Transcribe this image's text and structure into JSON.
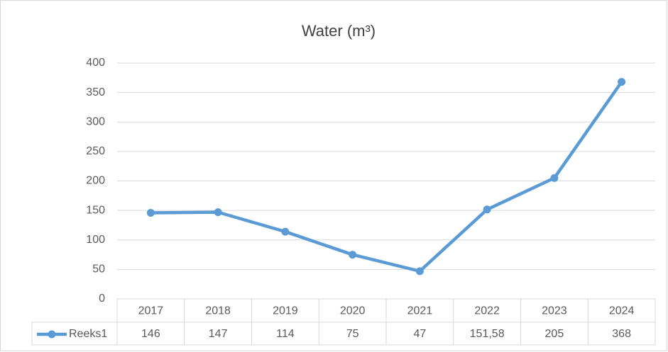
{
  "chart_data": {
    "type": "line",
    "title": "Water (m³)",
    "categories": [
      "2017",
      "2018",
      "2019",
      "2020",
      "2021",
      "2022",
      "2023",
      "2024"
    ],
    "series": [
      {
        "name": "Reeks1",
        "color": "#5b9bd5",
        "values": [
          146,
          147,
          114,
          75,
          47,
          151.58,
          205,
          368
        ],
        "value_labels": [
          "146",
          "147",
          "114",
          "75",
          "47",
          "151,58",
          "205",
          "368"
        ]
      }
    ],
    "ylim": [
      0,
      400
    ],
    "yticks": [
      0,
      50,
      100,
      150,
      200,
      250,
      300,
      350,
      400
    ],
    "grid": true,
    "data_table": true
  }
}
